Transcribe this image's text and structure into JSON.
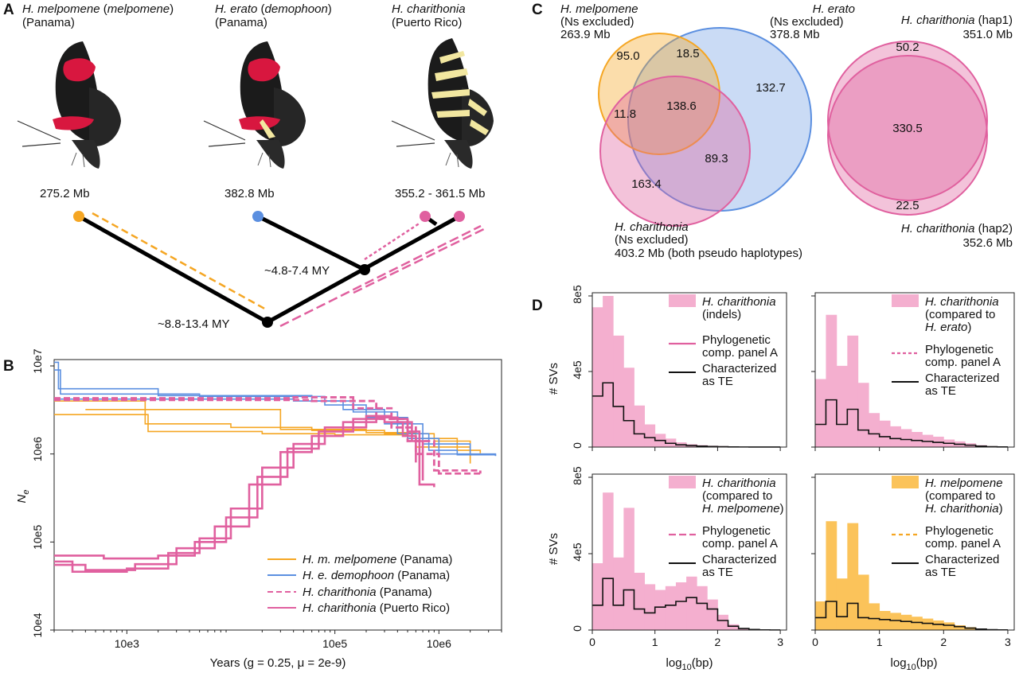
{
  "panels": {
    "A": {
      "letter": "A",
      "taxa": [
        {
          "genus": "H. ",
          "species": "melpomene",
          "sub": "melpomene",
          "locality": "(Panama)",
          "size": "275.2 Mb",
          "dot_color": "#F5A623"
        },
        {
          "genus": "H. ",
          "species": "erato",
          "sub": "demophoon",
          "locality": "(Panama)",
          "size": "382.8 Mb",
          "dot_color": "#5B8FE0"
        },
        {
          "genus": "H. ",
          "species": "charithonia",
          "sub": "",
          "locality": "(Puerto Rico)",
          "size": "355.2 - 361.5 Mb",
          "dot_color": "#E0609F"
        }
      ],
      "node_labels": [
        "~4.8-7.4 MY",
        "~8.8-13.4 MY"
      ]
    },
    "B": {
      "letter": "B",
      "ylabel": "N",
      "ylabel_sub": "e",
      "xlabel": "Years (g = 0.25, μ = 2e-9)",
      "yticks": [
        "10e7",
        "10e6",
        "10e5",
        "10e4"
      ],
      "xticks": [
        "10e3",
        "10e5",
        "10e6"
      ],
      "legend": [
        {
          "name": "H. m. melpomene",
          "loc": " (Panama)",
          "color": "#F5A623",
          "dash": false
        },
        {
          "name": "H. e. demophoon",
          "loc": " (Panama)",
          "color": "#5B8FE0",
          "dash": false
        },
        {
          "name": "H. charithonia",
          "loc": " (Panama)",
          "color": "#E0609F",
          "dash": true
        },
        {
          "name": "H. charithonia",
          "loc": " (Puerto Rico)",
          "color": "#E0609F",
          "dash": false
        }
      ]
    },
    "C": {
      "letter": "C",
      "venn1": {
        "labels": [
          {
            "species": "H. melpomene",
            "note": "(Ns excluded)",
            "size": "263.9 Mb"
          },
          {
            "species": "H. erato",
            "note": "(Ns excluded)",
            "size": "378.8 Mb"
          },
          {
            "species": "H. charithonia",
            "note": "(Ns excluded)",
            "size": "403.2 Mb (both pseudo haplotypes)"
          }
        ],
        "regions": [
          "95.0",
          "18.5",
          "132.7",
          "11.8",
          "138.6",
          "89.3",
          "163.4"
        ]
      },
      "venn2": {
        "labels": [
          {
            "species": "H. charithonia",
            "note": " (hap1)",
            "size": "351.0 Mb"
          },
          {
            "species": "H. charithonia",
            "note": " (hap2)",
            "size": "352.6 Mb"
          }
        ],
        "regions": [
          "50.2",
          "330.5",
          "22.5"
        ]
      }
    },
    "D": {
      "letter": "D",
      "ylabel": "# SVs",
      "xlabel": "log",
      "xlabel_sub": "10",
      "xlabel_tail": "(bp)",
      "yticks": [
        "8e5",
        "4e5",
        "0"
      ],
      "xticks": [
        "0",
        "1",
        "2",
        "3"
      ],
      "legend_common": {
        "phylo1": "Phylogenetic",
        "phylo2": "comp. panel A",
        "te1": "Characterized",
        "te2": "as TE"
      },
      "subpanels": [
        {
          "line1_i": "H. charithonia",
          "line2": "(indels)",
          "line3": "",
          "line3_i": "",
          "line3_tail": "",
          "color": "#F4AFCF",
          "phylo_color": "#E0609F",
          "phylo_dash": "none"
        },
        {
          "line1_i": "H. charithonia",
          "line2": "(compared to",
          "line3": "",
          "line3_i": "H. erato",
          "line3_tail": ")",
          "color": "#F4AFCF",
          "phylo_color": "#E0609F",
          "phylo_dash": "4,3"
        },
        {
          "line1_i": "H. charithonia",
          "line2": "(compared to",
          "line3": "",
          "line3_i": "H. melpomene",
          "line3_tail": ")",
          "color": "#F4AFCF",
          "phylo_color": "#E0609F",
          "phylo_dash": "9,4"
        },
        {
          "line1_i": "H. melpomene",
          "line2": "(compared to",
          "line3": "",
          "line3_i": "H. charithonia",
          "line3_tail": ")",
          "color": "#FBC35A",
          "phylo_color": "#F5A623",
          "phylo_dash": "5,4"
        }
      ]
    }
  },
  "chart_data": [
    {
      "type": "line",
      "title": "",
      "xlabel": "Years (g = 0.25, μ = 2e-9)",
      "ylabel": "Ne",
      "x_scale": "log",
      "y_scale": "log",
      "xlim": [
        200,
        4000000
      ],
      "ylim": [
        10000,
        10000000
      ],
      "series": [
        {
          "name": "H. m. melpomene (Panama)",
          "color": "#F5A623",
          "runs": [
            [
              [
                200,
                4000000.0
              ],
              [
                1500,
                4000000.0
              ],
              [
                1500,
                2200000.0
              ],
              [
                10000,
                2000000.0
              ],
              [
                60000,
                1850000.0
              ],
              [
                300000,
                1700000.0
              ],
              [
                900000,
                1400000.0
              ],
              [
                2000000,
                1050000.0
              ]
            ],
            [
              [
                200,
                2800000.0
              ],
              [
                1600,
                2800000.0
              ],
              [
                1600,
                1800000.0
              ],
              [
                20000,
                1700000.0
              ],
              [
                100000,
                1650000.0
              ],
              [
                500000,
                1500000.0
              ],
              [
                1500000,
                1100000.0
              ],
              [
                2500000,
                1020000.0
              ]
            ],
            [
              [
                400,
                3200000.0
              ],
              [
                1800,
                3200000.0
              ],
              [
                30000,
                1900000.0
              ],
              [
                200000,
                1750000.0
              ],
              [
                600000,
                1200000.0
              ],
              [
                2000000,
                780000.0
              ]
            ]
          ]
        },
        {
          "name": "H. e. demophoon (Panama)",
          "color": "#5B8FE0",
          "runs": [
            [
              [
                200,
                11000000.0
              ],
              [
                220,
                5500000.0
              ],
              [
                2000,
                5500000.0
              ],
              [
                2000,
                4600000.0
              ],
              [
                60000,
                4000000.0
              ],
              [
                150000,
                3000000.0
              ],
              [
                400000,
                1700000.0
              ],
              [
                800000,
                1100000.0
              ],
              [
                1500000,
                980000.0
              ],
              [
                3500000,
                950000.0
              ]
            ],
            [
              [
                200,
                9000000.0
              ],
              [
                230,
                4800000.0
              ],
              [
                5000,
                4500000.0
              ],
              [
                80000,
                3600000.0
              ],
              [
                200000,
                2600000.0
              ],
              [
                500000,
                1500000.0
              ],
              [
                1000000,
                1000000.0
              ],
              [
                3500000,
                950000.0
              ]
            ],
            [
              [
                200,
                4200000.0
              ],
              [
                40000,
                4000000.0
              ],
              [
                120000,
                3200000.0
              ],
              [
                300000,
                2200000.0
              ],
              [
                700000,
                1300000.0
              ],
              [
                2000000,
                960000.0
              ]
            ]
          ]
        },
        {
          "name": "H. charithonia (Panama)",
          "color": "#E0609F",
          "dashed": true,
          "runs": [
            [
              [
                200,
                4300000.0
              ],
              [
                40000,
                4400000.0
              ],
              [
                150000,
                3300000.0
              ],
              [
                350000,
                2000000.0
              ],
              [
                600000,
                1000000.0
              ],
              [
                1000000,
                600000.0
              ],
              [
                2500000,
                580000.0
              ]
            ],
            [
              [
                200,
                4100000.0
              ],
              [
                60000,
                4000000.0
              ],
              [
                250000,
                2500000.0
              ],
              [
                500000,
                1400000.0
              ],
              [
                900000,
                650000.0
              ],
              [
                2500000,
                600000.0
              ]
            ]
          ]
        },
        {
          "name": "H. charithonia (Puerto Rico)",
          "color": "#E0609F",
          "runs": [
            [
              [
                200,
                60000.0
              ],
              [
                300,
                46000.0
              ],
              [
                1000,
                50000.0
              ],
              [
                2500,
                75000.0
              ],
              [
                5000,
                110000.0
              ],
              [
                10000,
                240000.0
              ],
              [
                20000,
                700000.0
              ],
              [
                40000,
                1300000.0
              ],
              [
                80000,
                2000000.0
              ],
              [
                200000,
                2700000.0
              ],
              [
                350000,
                2500000.0
              ],
              [
                500000,
                1800000.0
              ],
              [
                650000,
                450000.0
              ],
              [
                900000,
                420000.0
              ]
            ],
            [
              [
                200,
                55000.0
              ],
              [
                400,
                48000.0
              ],
              [
                1200,
                56000.0
              ],
              [
                3000,
                85000.0
              ],
              [
                7000,
                150000.0
              ],
              [
                15000,
                450000.0
              ],
              [
                30000,
                1050000.0
              ],
              [
                60000,
                1600000.0
              ],
              [
                120000,
                2300000.0
              ],
              [
                250000,
                2600000.0
              ],
              [
                400000,
                2300000.0
              ],
              [
                550000,
                1400000.0
              ],
              [
                700000,
                500000.0
              ]
            ],
            [
              [
                200,
                70000.0
              ],
              [
                600,
                65000.0
              ],
              [
                2000,
                70000.0
              ],
              [
                4500,
                100000.0
              ],
              [
                9000,
                190000.0
              ],
              [
                18000,
                550000.0
              ],
              [
                35000,
                1150000.0
              ],
              [
                70000,
                1800000.0
              ],
              [
                150000,
                2500000.0
              ],
              [
                300000,
                2300000.0
              ],
              [
                450000,
                1600000.0
              ],
              [
                600000,
                800000.0
              ]
            ]
          ]
        }
      ]
    },
    {
      "type": "histogram",
      "panel": "D",
      "xlim": [
        0,
        3.1
      ],
      "ylim": [
        0,
        800000
      ],
      "bin_width": 0.1667,
      "subpanels": [
        {
          "bars": [
            740000,
            800000,
            590000,
            420000,
            220000,
            120000,
            70000,
            45000,
            25000,
            15000,
            10000,
            7000,
            5000,
            3000,
            2000,
            1000,
            500,
            200
          ],
          "te": [
            270000,
            340000,
            215000,
            140000,
            70000,
            50000,
            35000,
            20000,
            12000,
            8000,
            5000,
            3000,
            2000,
            1000,
            500,
            300,
            200,
            100
          ]
        },
        {
          "bars": [
            360000,
            700000,
            430000,
            590000,
            340000,
            180000,
            140000,
            110000,
            95000,
            80000,
            65000,
            55000,
            40000,
            30000,
            20000,
            10000,
            5000,
            2000
          ],
          "te": [
            120000,
            250000,
            120000,
            200000,
            90000,
            70000,
            55000,
            45000,
            40000,
            35000,
            30000,
            25000,
            20000,
            15000,
            10000,
            5000,
            2000,
            1000
          ]
        },
        {
          "bars": [
            350000,
            720000,
            380000,
            640000,
            300000,
            240000,
            210000,
            230000,
            250000,
            280000,
            230000,
            160000,
            80000,
            30000,
            10000,
            5000,
            2000,
            1000
          ],
          "te": [
            130000,
            270000,
            130000,
            210000,
            110000,
            90000,
            120000,
            130000,
            150000,
            170000,
            140000,
            110000,
            50000,
            20000,
            8000,
            3000,
            1000,
            500
          ]
        },
        {
          "bars": [
            150000,
            570000,
            270000,
            560000,
            290000,
            140000,
            100000,
            90000,
            80000,
            70000,
            60000,
            50000,
            40000,
            25000,
            15000,
            8000,
            4000,
            2000
          ],
          "te": [
            65000,
            150000,
            70000,
            140000,
            65000,
            60000,
            55000,
            50000,
            45000,
            40000,
            35000,
            30000,
            25000,
            18000,
            10000,
            5000,
            2000,
            1000
          ]
        }
      ]
    }
  ]
}
